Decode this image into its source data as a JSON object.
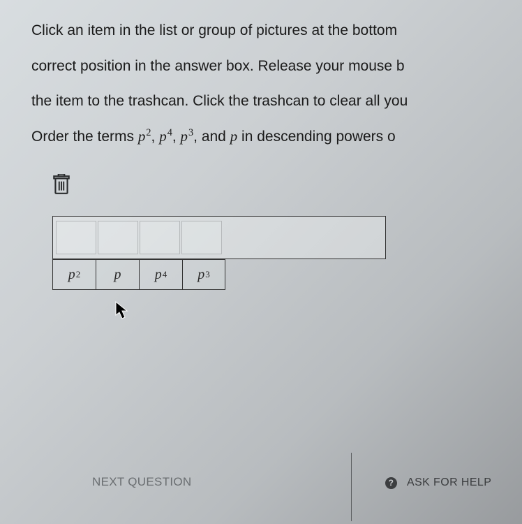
{
  "instructions": {
    "line1": "Click an item in the list or group of pictures at the bottom",
    "line2": "correct position in the answer box. Release your mouse b",
    "line3": "the item to the trashcan. Click the trashcan to clear all you"
  },
  "question": {
    "prefix": "Order the terms ",
    "terms": [
      {
        "base": "p",
        "exp": "2"
      },
      {
        "base": "p",
        "exp": "4"
      },
      {
        "base": "p",
        "exp": "3"
      },
      {
        "base": "p",
        "exp": ""
      }
    ],
    "suffix": " in descending powers o"
  },
  "answer_slots": 4,
  "tiles": [
    {
      "base": "p",
      "exp": "2"
    },
    {
      "base": "p",
      "exp": ""
    },
    {
      "base": "p",
      "exp": "4"
    },
    {
      "base": "p",
      "exp": "3"
    }
  ],
  "bottom": {
    "next_label": "NEXT QUESTION",
    "help_label": "ASK FOR HELP",
    "help_icon_char": "?"
  },
  "colors": {
    "text": "#1a1a1a",
    "border": "#333333",
    "muted": "#6a6e71",
    "divider": "#5a5d5f"
  }
}
